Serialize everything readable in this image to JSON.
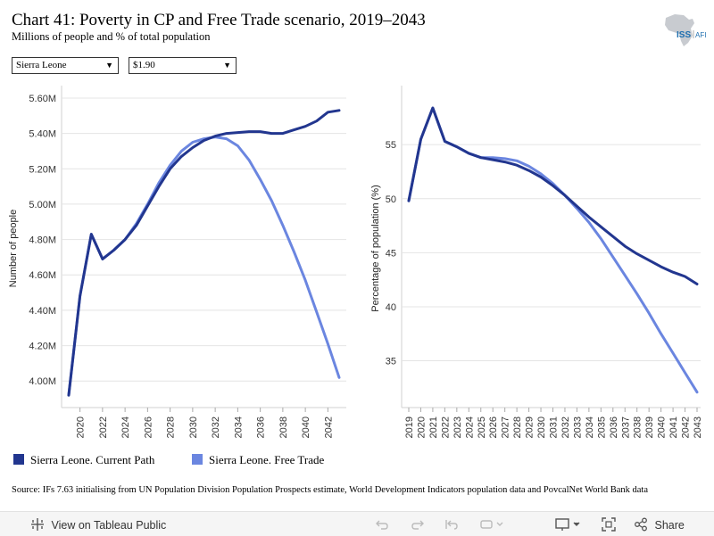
{
  "header": {
    "title": "Chart 41: Poverty in CP and Free Trade scenario, 2019–2043",
    "subtitle": "Millions of people and % of total population",
    "logo_text": "ISS",
    "logo_sub": "AFI"
  },
  "filters": {
    "country": "Sierra Leone",
    "poverty_line": "$1.90"
  },
  "colors": {
    "current_path": "#22368f",
    "free_trade": "#6b86e0"
  },
  "chart_data": [
    {
      "type": "line",
      "title": "",
      "xlabel": "",
      "ylabel": "Number of people",
      "x": [
        2019,
        2020,
        2021,
        2022,
        2023,
        2024,
        2025,
        2026,
        2027,
        2028,
        2029,
        2030,
        2031,
        2032,
        2033,
        2034,
        2035,
        2036,
        2037,
        2038,
        2039,
        2040,
        2041,
        2042,
        2043
      ],
      "xticks": [
        "2020",
        "2022",
        "2024",
        "2026",
        "2028",
        "2030",
        "2032",
        "2034",
        "2036",
        "2038",
        "2040",
        "2042"
      ],
      "ylim": [
        3.87,
        5.63
      ],
      "yticks": [
        4.0,
        4.2,
        4.4,
        4.6,
        4.8,
        5.0,
        5.2,
        5.4,
        5.6
      ],
      "ytick_labels": [
        "4.00M",
        "4.20M",
        "4.40M",
        "4.60M",
        "4.80M",
        "5.00M",
        "5.20M",
        "5.40M",
        "5.60M"
      ],
      "series": [
        {
          "name": "Sierra Leone. Current Path",
          "values": [
            3.92,
            4.48,
            4.83,
            4.69,
            4.74,
            4.8,
            4.88,
            4.99,
            5.1,
            5.2,
            5.27,
            5.32,
            5.36,
            5.385,
            5.4,
            5.405,
            5.41,
            5.41,
            5.4,
            5.4,
            5.42,
            5.44,
            5.47,
            5.52,
            5.53
          ]
        },
        {
          "name": "Sierra Leone. Free Trade",
          "values": [
            3.92,
            4.48,
            4.83,
            4.69,
            4.74,
            4.8,
            4.89,
            5.0,
            5.12,
            5.22,
            5.3,
            5.35,
            5.37,
            5.38,
            5.37,
            5.33,
            5.25,
            5.14,
            5.02,
            4.88,
            4.73,
            4.57,
            4.39,
            4.21,
            4.02
          ]
        }
      ]
    },
    {
      "type": "line",
      "title": "",
      "xlabel": "",
      "ylabel": "Percentage of population (%)",
      "x": [
        2019,
        2020,
        2021,
        2022,
        2023,
        2024,
        2025,
        2026,
        2027,
        2028,
        2029,
        2030,
        2031,
        2032,
        2033,
        2034,
        2035,
        2036,
        2037,
        2038,
        2039,
        2040,
        2041,
        2042,
        2043
      ],
      "xticks": [
        "2019",
        "2020",
        "2021",
        "2022",
        "2023",
        "2024",
        "2025",
        "2026",
        "2027",
        "2028",
        "2029",
        "2030",
        "2031",
        "2032",
        "2033",
        "2034",
        "2035",
        "2036",
        "2037",
        "2038",
        "2039",
        "2040",
        "2041",
        "2042",
        "2043"
      ],
      "ylim": [
        31.0,
        59.8
      ],
      "yticks": [
        35,
        40,
        45,
        50,
        55
      ],
      "ytick_labels": [
        "35",
        "40",
        "45",
        "50",
        "55"
      ],
      "series": [
        {
          "name": "Sierra Leone. Current Path",
          "values": [
            49.8,
            55.5,
            58.4,
            55.3,
            54.8,
            54.2,
            53.8,
            53.6,
            53.4,
            53.1,
            52.6,
            52.0,
            51.2,
            50.3,
            49.3,
            48.3,
            47.4,
            46.5,
            45.6,
            44.9,
            44.3,
            43.7,
            43.2,
            42.8,
            42.1
          ]
        },
        {
          "name": "Sierra Leone. Free Trade",
          "values": [
            49.8,
            55.5,
            58.4,
            55.3,
            54.8,
            54.2,
            53.8,
            53.8,
            53.7,
            53.5,
            53.0,
            52.3,
            51.4,
            50.3,
            49.1,
            47.8,
            46.3,
            44.6,
            42.9,
            41.2,
            39.4,
            37.5,
            35.7,
            33.9,
            32.1
          ]
        }
      ]
    }
  ],
  "legend": {
    "current_path": "Sierra Leone. Current Path",
    "free_trade": "Sierra Leone. Free Trade"
  },
  "source": "Source: IFs 7.63 initialising from UN Population Division Population Prospects estimate, World Development Indicators population data and PovcalNet World Bank data",
  "toolbar": {
    "view_label": "View on Tableau Public",
    "share_label": "Share",
    "icons": [
      "tableau-logo-icon",
      "undo-icon",
      "redo-icon",
      "revert-icon",
      "refresh-icon",
      "download-icon",
      "fullscreen-icon",
      "share-icon"
    ]
  }
}
